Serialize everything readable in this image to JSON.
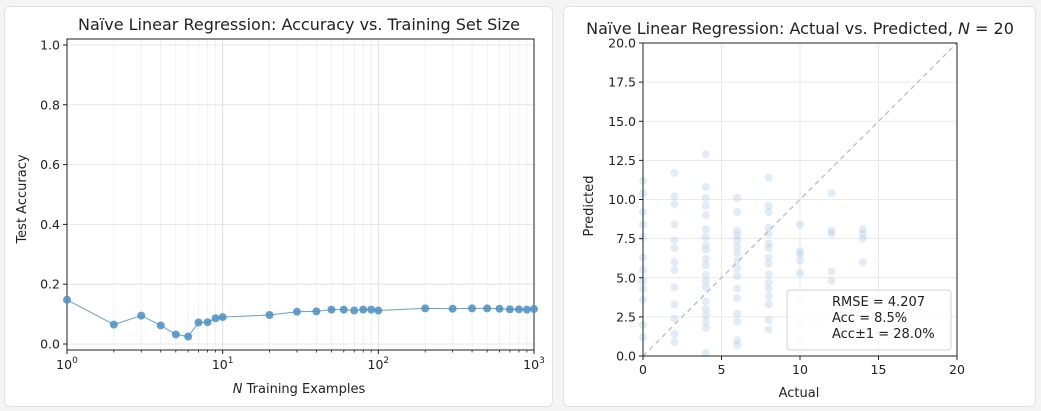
{
  "chart_data": [
    {
      "type": "line",
      "title": "Naïve Linear Regression: Accuracy vs. Training Set Size",
      "xlabel_var": "N",
      "xlabel_rest": " Training Examples",
      "ylabel": "Test Accuracy",
      "xscale": "log",
      "xlim": [
        1,
        1000
      ],
      "ylim": [
        -0.02,
        1.02
      ],
      "grid": true,
      "x_ticks": [
        {
          "value": 1,
          "base": "10",
          "exp": "0"
        },
        {
          "value": 10,
          "base": "10",
          "exp": "1"
        },
        {
          "value": 100,
          "base": "10",
          "exp": "2"
        },
        {
          "value": 1000,
          "base": "10",
          "exp": "3"
        }
      ],
      "y_ticks": [
        {
          "value": 0.0,
          "label": "0.0"
        },
        {
          "value": 0.2,
          "label": "0.2"
        },
        {
          "value": 0.4,
          "label": "0.4"
        },
        {
          "value": 0.6,
          "label": "0.6"
        },
        {
          "value": 0.8,
          "label": "0.8"
        },
        {
          "value": 1.0,
          "label": "1.0"
        }
      ],
      "color": "#4a8fc4",
      "x": [
        1,
        2,
        3,
        4,
        5,
        6,
        7,
        8,
        9,
        10,
        20,
        30,
        40,
        50,
        60,
        70,
        80,
        90,
        100,
        200,
        300,
        400,
        500,
        600,
        700,
        800,
        900,
        1000
      ],
      "y": [
        0.148,
        0.065,
        0.095,
        0.062,
        0.032,
        0.025,
        0.072,
        0.073,
        0.086,
        0.09,
        0.097,
        0.108,
        0.109,
        0.115,
        0.115,
        0.112,
        0.115,
        0.115,
        0.112,
        0.119,
        0.118,
        0.119,
        0.119,
        0.118,
        0.116,
        0.116,
        0.115,
        0.117
      ]
    },
    {
      "type": "scatter",
      "title_prefix": "Naïve Linear Regression: Actual vs. Predicted, ",
      "title_var": "N",
      "title_suffix": " = 20",
      "xlabel": "Actual",
      "ylabel": "Predicted",
      "xlim": [
        0,
        20
      ],
      "ylim": [
        0,
        20
      ],
      "grid": true,
      "x_ticks": [
        "0",
        "5",
        "10",
        "15",
        "20"
      ],
      "y_ticks": [
        "0.0",
        "2.5",
        "5.0",
        "7.5",
        "10.0",
        "12.5",
        "15.0",
        "17.5",
        "20.0"
      ],
      "color": "#a9c9e6",
      "diagonal_color": "#b8b8b8",
      "legend_position": "lower-right",
      "legend": [
        "RMSE = 4.207",
        "Acc = 8.5%",
        "Acc±1 = 28.0%"
      ],
      "points": [
        [
          0,
          11.2
        ],
        [
          0,
          10.4
        ],
        [
          0,
          9.2
        ],
        [
          0,
          8.4
        ],
        [
          0,
          7.6
        ],
        [
          0,
          6.3
        ],
        [
          0,
          5.5
        ],
        [
          0,
          4.8
        ],
        [
          0,
          4.3
        ],
        [
          0,
          3.6
        ],
        [
          0,
          2.0
        ],
        [
          0,
          1.2
        ],
        [
          2,
          11.7
        ],
        [
          2,
          10.2
        ],
        [
          2,
          9.7
        ],
        [
          2,
          8.4
        ],
        [
          2,
          7.4
        ],
        [
          2,
          6.9
        ],
        [
          2,
          6.0
        ],
        [
          2,
          5.5
        ],
        [
          2,
          4.4
        ],
        [
          2,
          3.3
        ],
        [
          2,
          2.4
        ],
        [
          2,
          1.4
        ],
        [
          2,
          0.9
        ],
        [
          4,
          12.9
        ],
        [
          4,
          10.8
        ],
        [
          4,
          10.1
        ],
        [
          4,
          9.6
        ],
        [
          4,
          9.0
        ],
        [
          4,
          8.1
        ],
        [
          4,
          7.6
        ],
        [
          4,
          7.1
        ],
        [
          4,
          6.8
        ],
        [
          4,
          6.2
        ],
        [
          4,
          5.8
        ],
        [
          4,
          5.2
        ],
        [
          4,
          4.8
        ],
        [
          4,
          4.4
        ],
        [
          4,
          3.5
        ],
        [
          4,
          3.0
        ],
        [
          4,
          2.6
        ],
        [
          4,
          2.2
        ],
        [
          4,
          1.8
        ],
        [
          4,
          0.2
        ],
        [
          6,
          10.1
        ],
        [
          6,
          9.2
        ],
        [
          6,
          8.0
        ],
        [
          6,
          7.7
        ],
        [
          6,
          7.4
        ],
        [
          6,
          7.0
        ],
        [
          6,
          6.6
        ],
        [
          6,
          6.1
        ],
        [
          6,
          5.6
        ],
        [
          6,
          5.1
        ],
        [
          6,
          4.3
        ],
        [
          6,
          3.7
        ],
        [
          6,
          2.7
        ],
        [
          6,
          2.2
        ],
        [
          6,
          1.0
        ],
        [
          6,
          0.7
        ],
        [
          8,
          11.4
        ],
        [
          8,
          9.6
        ],
        [
          8,
          9.2
        ],
        [
          8,
          8.2
        ],
        [
          8,
          7.8
        ],
        [
          8,
          7.2
        ],
        [
          8,
          6.9
        ],
        [
          8,
          6.3
        ],
        [
          8,
          5.9
        ],
        [
          8,
          5.2
        ],
        [
          8,
          4.7
        ],
        [
          8,
          4.3
        ],
        [
          8,
          3.8
        ],
        [
          8,
          3.3
        ],
        [
          8,
          2.3
        ],
        [
          8,
          1.7
        ],
        [
          10,
          8.4
        ],
        [
          10,
          6.7
        ],
        [
          10,
          6.5
        ],
        [
          10,
          6.1
        ],
        [
          10,
          5.3
        ],
        [
          10,
          3.7
        ],
        [
          10,
          2.2
        ],
        [
          10,
          0.9
        ],
        [
          11,
          2.3
        ],
        [
          12,
          10.4
        ],
        [
          12,
          8.0
        ],
        [
          12,
          7.8
        ],
        [
          12,
          5.4
        ],
        [
          12,
          4.8
        ],
        [
          14,
          8.1
        ],
        [
          14,
          7.8
        ],
        [
          14,
          7.5
        ],
        [
          14,
          6.0
        ]
      ]
    }
  ]
}
